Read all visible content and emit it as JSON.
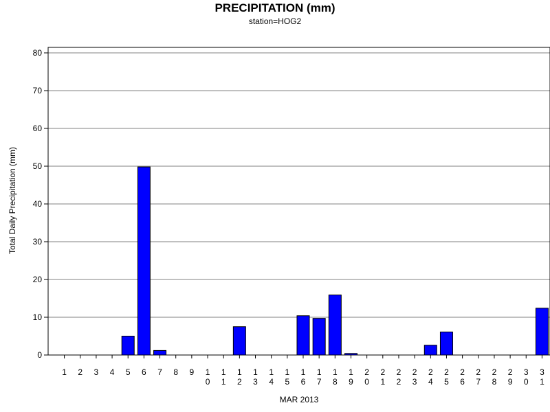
{
  "chart_data": {
    "type": "bar",
    "title": "PRECIPITATION (mm)",
    "subtitle": "station=HOG2",
    "xlabel": "MAR 2013",
    "ylabel": "Total Daily Precipitation (mm)",
    "ylim": [
      0,
      80
    ],
    "yticks": [
      0,
      10,
      20,
      30,
      40,
      50,
      60,
      70,
      80
    ],
    "grid": true,
    "categories": [
      "1",
      "2",
      "3",
      "4",
      "5",
      "6",
      "7",
      "8",
      "9",
      "10",
      "11",
      "12",
      "13",
      "14",
      "15",
      "16",
      "17",
      "18",
      "19",
      "20",
      "21",
      "22",
      "23",
      "24",
      "25",
      "26",
      "27",
      "28",
      "29",
      "30",
      "31"
    ],
    "values": [
      0,
      0,
      0,
      0,
      5.0,
      49.8,
      1.2,
      0,
      0,
      0,
      0,
      7.5,
      0,
      0,
      0,
      10.4,
      9.7,
      15.9,
      0.4,
      0,
      0,
      0,
      0,
      2.6,
      6.1,
      0,
      0,
      0,
      0,
      0,
      12.4
    ],
    "bar_color": "#0000ff",
    "bar_outline": "#000000",
    "grid_color": "#808080"
  }
}
